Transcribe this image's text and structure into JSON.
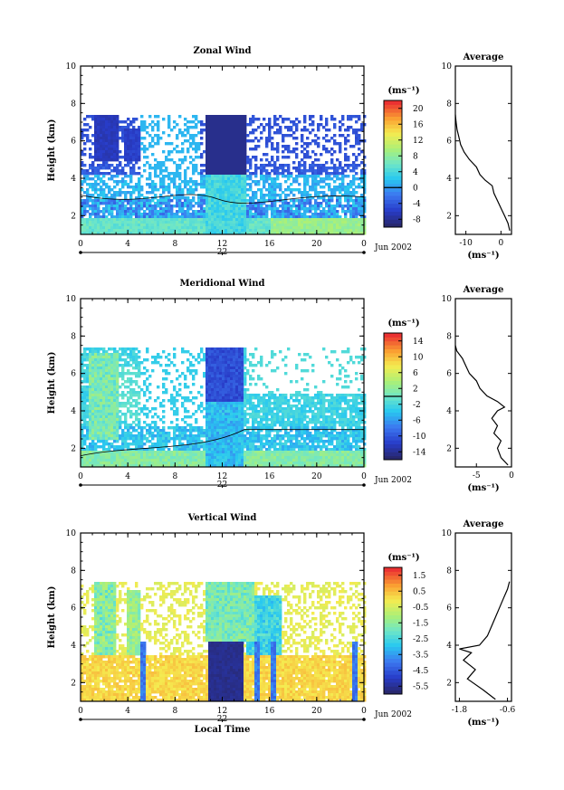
{
  "chart_data": [
    {
      "type": "heatmap",
      "title": "Zonal Wind",
      "ylabel": "Height (km)",
      "xlabel": "",
      "x_ticks": [
        "0",
        "4",
        "8",
        "12",
        "16",
        "20",
        "0"
      ],
      "y_ticks": [
        "2",
        "4",
        "6",
        "8",
        "10"
      ],
      "xlim": [
        0,
        24
      ],
      "ylim": [
        1,
        10
      ],
      "date_marker": "22",
      "date_label": "Jun 2002",
      "colorbar": {
        "unit": "(ms⁻¹)",
        "ticks": [
          "-8",
          "-4",
          "0",
          "4",
          "8",
          "12",
          "16",
          "20"
        ],
        "range": [
          -10,
          22
        ],
        "contour_value": 0
      },
      "profile": {
        "title": "Average",
        "xlabel": "(ms⁻¹)",
        "x_ticks": [
          "-10",
          "0"
        ],
        "xlim": [
          -13,
          3
        ],
        "y_ticks": [
          "2",
          "4",
          "6",
          "8",
          "10"
        ],
        "ylim": [
          1,
          10
        ],
        "points": [
          [
            2.5,
            1.2
          ],
          [
            2.0,
            1.6
          ],
          [
            1.0,
            2.0
          ],
          [
            0.0,
            2.4
          ],
          [
            -1.0,
            2.8
          ],
          [
            -2.0,
            3.2
          ],
          [
            -2.5,
            3.6
          ],
          [
            -4.5,
            3.9
          ],
          [
            -6.0,
            4.2
          ],
          [
            -7.0,
            4.6
          ],
          [
            -9.0,
            5.0
          ],
          [
            -10.5,
            5.4
          ],
          [
            -11.5,
            5.8
          ],
          [
            -12.0,
            6.2
          ],
          [
            -12.5,
            6.6
          ],
          [
            -12.8,
            7.0
          ],
          [
            -13.0,
            7.4
          ]
        ]
      },
      "field": {
        "kind": "zonal"
      }
    },
    {
      "type": "heatmap",
      "title": "Meridional Wind",
      "ylabel": "Height (km)",
      "xlabel": "",
      "x_ticks": [
        "0",
        "4",
        "8",
        "12",
        "16",
        "20",
        "0"
      ],
      "y_ticks": [
        "2",
        "4",
        "6",
        "8",
        "10"
      ],
      "xlim": [
        0,
        24
      ],
      "ylim": [
        1,
        10
      ],
      "date_marker": "22",
      "date_label": "Jun 2002",
      "colorbar": {
        "unit": "(ms⁻¹)",
        "ticks": [
          "-14",
          "-10",
          "-6",
          "-2",
          "2",
          "6",
          "10",
          "14"
        ],
        "range": [
          -16,
          16
        ],
        "contour_value": 0
      },
      "profile": {
        "title": "Average",
        "xlabel": "(ms⁻¹)",
        "x_ticks": [
          "-5",
          "0"
        ],
        "xlim": [
          -8,
          0
        ],
        "y_ticks": [
          "2",
          "4",
          "6",
          "8",
          "10"
        ],
        "ylim": [
          1,
          10
        ],
        "points": [
          [
            -0.5,
            1.1
          ],
          [
            -1.5,
            1.5
          ],
          [
            -2.0,
            2.0
          ],
          [
            -1.5,
            2.4
          ],
          [
            -2.5,
            2.8
          ],
          [
            -2.0,
            3.2
          ],
          [
            -2.8,
            3.6
          ],
          [
            -2.0,
            4.0
          ],
          [
            -1.0,
            4.2
          ],
          [
            -2.0,
            4.5
          ],
          [
            -3.5,
            4.8
          ],
          [
            -4.5,
            5.2
          ],
          [
            -5.0,
            5.6
          ],
          [
            -6.0,
            6.0
          ],
          [
            -6.5,
            6.4
          ],
          [
            -7.0,
            6.8
          ],
          [
            -7.8,
            7.2
          ],
          [
            -8.0,
            7.5
          ]
        ]
      },
      "field": {
        "kind": "meridional"
      }
    },
    {
      "type": "heatmap",
      "title": "Vertical Wind",
      "ylabel": "Height (km)",
      "xlabel": "Local Time",
      "x_ticks": [
        "0",
        "4",
        "8",
        "12",
        "16",
        "20",
        "0"
      ],
      "y_ticks": [
        "2",
        "4",
        "6",
        "8",
        "10"
      ],
      "xlim": [
        0,
        24
      ],
      "ylim": [
        1,
        10
      ],
      "date_marker": "22",
      "date_label": "Jun 2002",
      "colorbar": {
        "unit": "(ms⁻¹)",
        "ticks": [
          "-5.5",
          "-4.5",
          "-3.5",
          "-2.5",
          "-1.5",
          "-0.5",
          "0.5",
          "1.5"
        ],
        "range": [
          -6,
          2
        ]
      },
      "profile": {
        "title": "Average",
        "xlabel": "(ms⁻¹)",
        "x_ticks": [
          "-1.8",
          "-0.6"
        ],
        "xlim": [
          -1.9,
          -0.5
        ],
        "y_ticks": [
          "2",
          "4",
          "6",
          "8",
          "10"
        ],
        "ylim": [
          1,
          10
        ],
        "points": [
          [
            -0.9,
            1.1
          ],
          [
            -1.2,
            1.6
          ],
          [
            -1.6,
            2.2
          ],
          [
            -1.4,
            2.7
          ],
          [
            -1.7,
            3.2
          ],
          [
            -1.5,
            3.6
          ],
          [
            -1.8,
            3.8
          ],
          [
            -1.3,
            4.0
          ],
          [
            -1.1,
            4.5
          ],
          [
            -1.0,
            5.0
          ],
          [
            -0.9,
            5.5
          ],
          [
            -0.8,
            6.0
          ],
          [
            -0.7,
            6.5
          ],
          [
            -0.6,
            7.0
          ],
          [
            -0.55,
            7.4
          ]
        ]
      },
      "field": {
        "kind": "vertical"
      }
    }
  ]
}
